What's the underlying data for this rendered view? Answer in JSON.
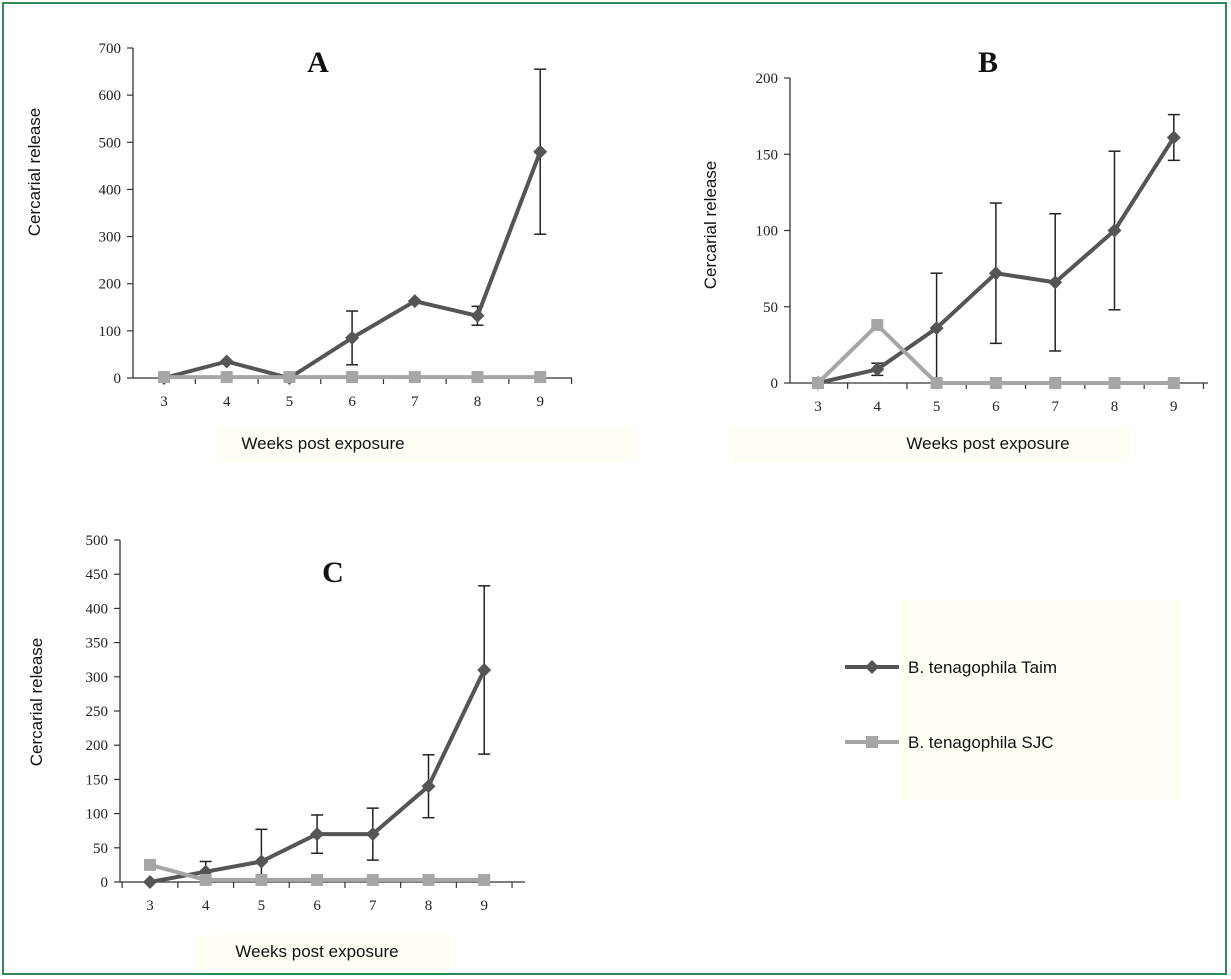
{
  "chart_data": [
    {
      "type": "line",
      "title": "A",
      "xlabel": "Weeks post exposure",
      "ylabel": "Cercarial release",
      "categories": [
        "3",
        "4",
        "5",
        "6",
        "7",
        "8",
        "9"
      ],
      "ylim": [
        0,
        700
      ],
      "yticks": [
        "0",
        "100",
        "200",
        "300",
        "400",
        "500",
        "600",
        "700"
      ],
      "grid": false,
      "series": [
        {
          "name": "B. tenagophila Taim",
          "color": "#555555",
          "marker": "diamond",
          "values": [
            0,
            35,
            0,
            85,
            163,
            132,
            480
          ],
          "errors": [
            0,
            0,
            0,
            57,
            0,
            20,
            175
          ]
        },
        {
          "name": "B. tenagophila SJC",
          "color": "#a6a6a6",
          "marker": "square",
          "values": [
            2,
            2,
            2,
            2,
            2,
            2,
            2
          ],
          "errors": [
            0,
            0,
            0,
            0,
            0,
            0,
            0
          ]
        }
      ]
    },
    {
      "type": "line",
      "title": "B",
      "xlabel": "Weeks post exposure",
      "ylabel": "Cercarial release",
      "categories": [
        "3",
        "4",
        "5",
        "6",
        "7",
        "8",
        "9"
      ],
      "ylim": [
        0,
        200
      ],
      "yticks": [
        "0",
        "50",
        "100",
        "150",
        "200"
      ],
      "grid": false,
      "series": [
        {
          "name": "B. tenagophila Taim",
          "color": "#555555",
          "marker": "diamond",
          "values": [
            0,
            9,
            36,
            72,
            66,
            100,
            161
          ],
          "errors": [
            0,
            4,
            36,
            46,
            45,
            52,
            15
          ]
        },
        {
          "name": "B. tenagophila SJC",
          "color": "#a6a6a6",
          "marker": "square",
          "values": [
            0,
            38,
            0,
            0,
            0,
            0,
            0
          ],
          "errors": [
            0,
            0,
            0,
            0,
            0,
            0,
            0
          ]
        }
      ]
    },
    {
      "type": "line",
      "title": "C",
      "xlabel": "Weeks post exposure",
      "ylabel": "Cercarial release",
      "categories": [
        "3",
        "4",
        "5",
        "6",
        "7",
        "8",
        "9"
      ],
      "ylim": [
        0,
        500
      ],
      "yticks": [
        "0",
        "50",
        "100",
        "150",
        "200",
        "250",
        "300",
        "350",
        "400",
        "450",
        "500"
      ],
      "grid": false,
      "series": [
        {
          "name": "B. tenagophila Taim",
          "color": "#555555",
          "marker": "diamond",
          "values": [
            0,
            15,
            30,
            70,
            70,
            140,
            310
          ],
          "errors": [
            0,
            15,
            47,
            28,
            38,
            46,
            123
          ]
        },
        {
          "name": "B. tenagophila SJC",
          "color": "#a6a6a6",
          "marker": "square",
          "values": [
            25,
            3,
            3,
            3,
            3,
            3,
            3
          ],
          "errors": [
            0,
            0,
            0,
            0,
            0,
            0,
            0
          ]
        }
      ]
    }
  ],
  "legend": {
    "placement": "right",
    "items": [
      {
        "label": "B. tenagophila Taim",
        "color": "#555555",
        "marker": "diamond"
      },
      {
        "label": "B. tenagophila SJC",
        "color": "#a6a6a6",
        "marker": "square"
      }
    ]
  },
  "style": {
    "frame_color": "#2e8b57",
    "axis_color": "#333333",
    "error_bar_color": "#222222",
    "label_background": "#fffdf4"
  }
}
